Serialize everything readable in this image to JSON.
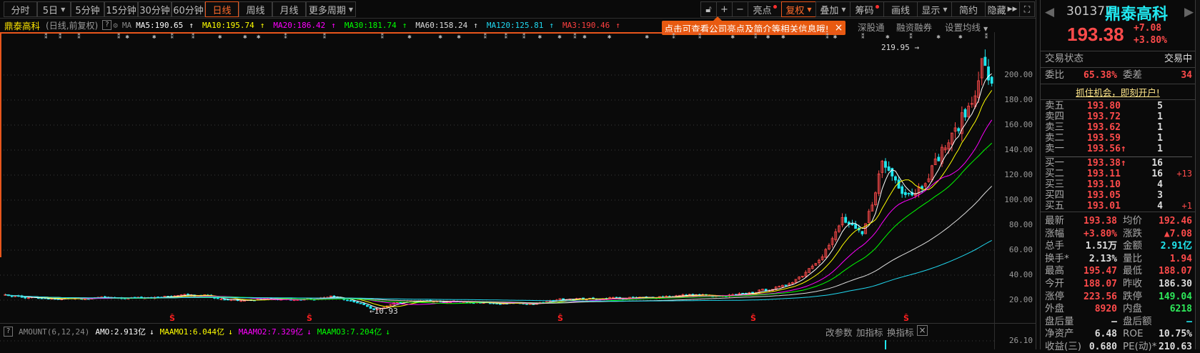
{
  "toolbar": {
    "periods": [
      {
        "label": "分时"
      },
      {
        "label": "5日",
        "dropdown": true
      },
      {
        "label": "5分钟"
      },
      {
        "label": "15分钟"
      },
      {
        "label": "30分钟"
      },
      {
        "label": "60分钟"
      },
      {
        "label": "日线",
        "active": true
      },
      {
        "label": "周线"
      },
      {
        "label": "月线"
      },
      {
        "label": "更多周期",
        "dropdown": true
      }
    ],
    "tools": {
      "lock": "lock-icon",
      "zoom_in": "+",
      "zoom_out": "−",
      "highlights": "亮点",
      "adjust": "复权",
      "overlay": "叠加",
      "chips": "筹码",
      "draw": "画线",
      "display": "显示",
      "simple": "简约",
      "hide": "隐藏",
      "fullscreen": "fullscreen-icon"
    }
  },
  "chart_header": {
    "name": "鼎泰高科",
    "mode": "(日线,前复权)",
    "help": "?",
    "ma_label": "MA",
    "ma": [
      {
        "label": "MA5:190.65",
        "color": "#ffffff"
      },
      {
        "label": "MA10:195.74",
        "color": "#ffff00"
      },
      {
        "label": "MA20:186.42",
        "color": "#ff00ff"
      },
      {
        "label": "MA30:181.74",
        "color": "#00ff00"
      },
      {
        "label": "MA60:158.24",
        "color": "#dddddd"
      },
      {
        "label": "MA120:125.81",
        "color": "#20d8f0"
      },
      {
        "label": "MA3:190.46",
        "color": "#ff4040"
      }
    ],
    "arrow": "↑"
  },
  "tooltip": {
    "text": "点击可查看公司亮点及简介等相关信息哦!",
    "close": "×"
  },
  "sublinks": {
    "shenzhen_connect": "深股通",
    "margin": "融资融券",
    "ma_settings": "设置均线"
  },
  "chart_data": {
    "type": "candlestick",
    "ylim": [
      10,
      220
    ],
    "yticks": [
      "200.00",
      "180.00",
      "160.00",
      "140.00",
      "120.00",
      "100.00",
      "80.00",
      "60.00",
      "40.00",
      "20.00"
    ],
    "closes": [
      24,
      23,
      22,
      22,
      21,
      21,
      21,
      21,
      21,
      22,
      22,
      22,
      21,
      22,
      22,
      22,
      23,
      23,
      24,
      23,
      24,
      22,
      21,
      20,
      20,
      20,
      21,
      21,
      21,
      20,
      21,
      21,
      22,
      23,
      21,
      19,
      16,
      12,
      14,
      18,
      18,
      19,
      19,
      19,
      18,
      19,
      18,
      18,
      18,
      17,
      17,
      18,
      17,
      17,
      18,
      20,
      21,
      21,
      21,
      21,
      21,
      22,
      21,
      22,
      22,
      22,
      23,
      23,
      24,
      24,
      24,
      23,
      23,
      24,
      25,
      26,
      28,
      29,
      31,
      35,
      40,
      48,
      56,
      68,
      85,
      78,
      72,
      98,
      130,
      120,
      108,
      105,
      112,
      125,
      140,
      150,
      165,
      178,
      210,
      193.38
    ],
    "high_label": "219.95",
    "low_label": "10.93",
    "up_color": "#ff4b4b",
    "down_color": "#20e8f0"
  },
  "indicator": {
    "help": "?",
    "name": "AMOUNT(6,12,24)",
    "items": [
      {
        "label": "AMO:2.913亿",
        "color": "#ffffff"
      },
      {
        "label": "MAAMO1:6.044亿",
        "color": "#ffff00"
      },
      {
        "label": "MAAMO2:7.329亿",
        "color": "#ff00ff"
      },
      {
        "label": "MAAMO3:7.204亿",
        "color": "#00ff00"
      }
    ],
    "arrow": "↓",
    "axis": "26.10",
    "actions": {
      "params": "改参数",
      "add": "加指标",
      "switch": "换指标",
      "close": "×"
    }
  },
  "quote": {
    "code": "301377",
    "name": "鼎泰高科",
    "price": "193.38",
    "change": "+7.08",
    "change_pct": "+3.80%",
    "status_label": "交易状态",
    "status": "交易中",
    "wb_label": "委比",
    "wb": "65.38%",
    "wc_label": "委差",
    "wc": "34",
    "promo": "抓住机会，即刻开户!",
    "asks": [
      {
        "label": "卖五",
        "price": "193.80",
        "qty": "5"
      },
      {
        "label": "卖四",
        "price": "193.72",
        "qty": "1"
      },
      {
        "label": "卖三",
        "price": "193.62",
        "qty": "1"
      },
      {
        "label": "卖二",
        "price": "193.59",
        "qty": "1"
      },
      {
        "label": "卖一",
        "price": "193.56↑",
        "qty": "1"
      }
    ],
    "bids": [
      {
        "label": "买一",
        "price": "193.38↑",
        "qty": "16",
        "chg": ""
      },
      {
        "label": "买二",
        "price": "193.11",
        "qty": "16",
        "chg": "+13"
      },
      {
        "label": "买三",
        "price": "193.10",
        "qty": "4",
        "chg": ""
      },
      {
        "label": "买四",
        "price": "193.05",
        "qty": "3",
        "chg": ""
      },
      {
        "label": "买五",
        "price": "193.01",
        "qty": "4",
        "chg": "+1"
      }
    ],
    "stats": [
      {
        "l1": "最新",
        "v1": "193.38",
        "c1": "red",
        "l2": "均价",
        "v2": "192.46",
        "c2": "red"
      },
      {
        "l1": "涨幅",
        "v1": "+3.80%",
        "c1": "red",
        "l2": "涨跌",
        "v2": "▲7.08",
        "c2": "red"
      },
      {
        "l1": "总手",
        "v1": "1.51万",
        "c1": "white",
        "l2": "金额",
        "v2": "2.91亿",
        "c2": "cyan"
      },
      {
        "l1": "换手*",
        "v1": "2.13%",
        "c1": "white",
        "l2": "量比",
        "v2": "1.94",
        "c2": "red"
      },
      {
        "l1": "最高",
        "v1": "195.47",
        "c1": "red",
        "l2": "最低",
        "v2": "188.07",
        "c2": "red"
      },
      {
        "l1": "今开",
        "v1": "188.07",
        "c1": "red",
        "l2": "昨收",
        "v2": "186.30",
        "c2": "white"
      },
      {
        "l1": "涨停",
        "v1": "223.56",
        "c1": "red",
        "l2": "跌停",
        "v2": "149.04",
        "c2": "green"
      },
      {
        "l1": "外盘",
        "v1": "8920",
        "c1": "red",
        "l2": "内盘",
        "v2": "6218",
        "c2": "green"
      },
      {
        "l1": "盘后量",
        "v1": "—",
        "c1": "white",
        "l2": "盘后额",
        "v2": "—",
        "c2": "cyan"
      },
      {
        "l1": "净资产",
        "v1": "6.48",
        "c1": "white",
        "l2": "ROE",
        "v2": "10.75%",
        "c2": "white"
      },
      {
        "l1": "收益(三)",
        "v1": "0.680",
        "c1": "white",
        "l2": "PE(动)*",
        "v2": "210.63",
        "c2": "white"
      }
    ]
  }
}
